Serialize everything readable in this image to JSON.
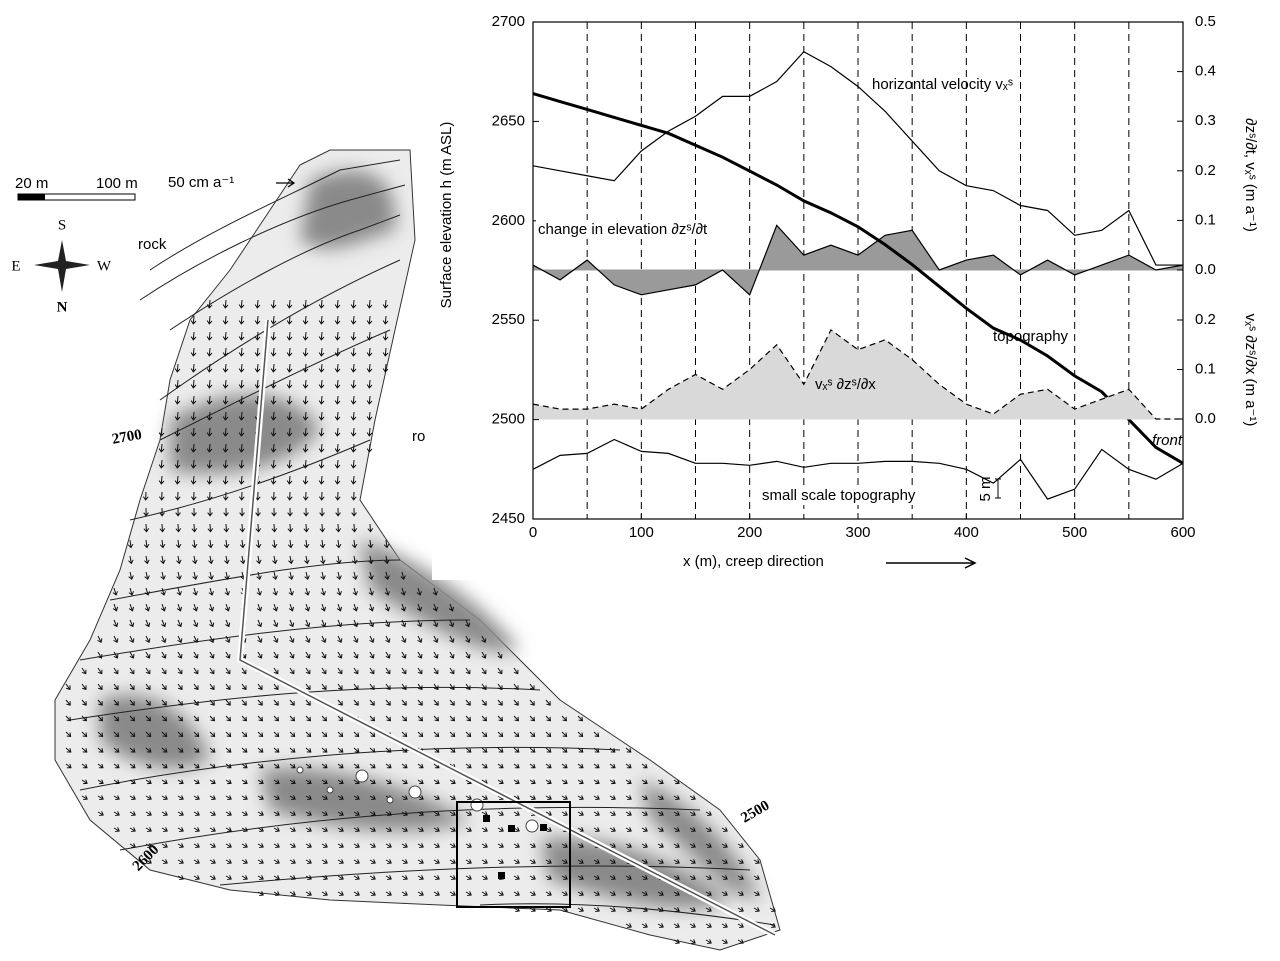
{
  "chart_data": {
    "type": "line",
    "x": [
      0,
      25,
      50,
      75,
      100,
      125,
      150,
      175,
      200,
      225,
      250,
      275,
      300,
      325,
      350,
      375,
      400,
      425,
      450,
      475,
      500,
      525,
      550,
      575,
      600
    ],
    "xlabel": "x (m), creep direction",
    "ylabel": "Surface elevation h  (m ASL)",
    "y2label": "∂zˢ/∂t, vₓˢ   (m a⁻¹)",
    "y3label": "vₓˢ ∂zˢ/∂x  (m a⁻¹)",
    "xlim": [
      0,
      600
    ],
    "xticks": [
      0,
      100,
      200,
      300,
      400,
      500,
      600
    ],
    "xgrid": [
      50,
      100,
      150,
      200,
      250,
      300,
      350,
      400,
      450,
      500,
      550
    ],
    "ylim": [
      2450,
      2700
    ],
    "yticks": [
      2450,
      2500,
      2550,
      2600,
      2650,
      2700
    ],
    "y2lim": [
      0,
      0.5
    ],
    "y2ticks": [
      {
        "value": 0,
        "label": "0.0"
      },
      {
        "value": 0.1,
        "label": "0.1"
      },
      {
        "value": 0.2,
        "label": "0.2"
      },
      {
        "value": 0.3,
        "label": "0.3"
      },
      {
        "value": 0.4,
        "label": "0.4"
      },
      {
        "value": 0.5,
        "label": "0.5"
      }
    ],
    "y3lim": [
      0,
      0.2
    ],
    "y3ticks": [
      {
        "value": 0,
        "label": "0.0"
      },
      {
        "value": 0.1,
        "label": "0.1"
      },
      {
        "value": 0.2,
        "label": "0.2"
      }
    ],
    "series": [
      {
        "name": "horizontal velocity vₓˢ",
        "color": "#000000",
        "axis": "y2",
        "style": "thin",
        "values": [
          0.21,
          0.2,
          0.19,
          0.18,
          0.24,
          0.28,
          0.31,
          0.35,
          0.35,
          0.38,
          0.44,
          0.41,
          0.37,
          0.32,
          0.26,
          0.2,
          0.17,
          0.16,
          0.13,
          0.12,
          0.07,
          0.08,
          0.12,
          0.01,
          0.01
        ]
      },
      {
        "name": "change in elevation ∂zˢ/∂t",
        "color": "#000000",
        "fill": "#9a9a9a",
        "axis": "y2",
        "style": "thin",
        "values": [
          0.01,
          -0.02,
          0.02,
          -0.03,
          -0.05,
          -0.04,
          -0.03,
          0.0,
          -0.05,
          0.09,
          0.03,
          0.05,
          0.03,
          0.07,
          0.08,
          0.0,
          0.02,
          0.03,
          -0.01,
          0.02,
          -0.01,
          0.01,
          0.03,
          0.0,
          0.01
        ]
      },
      {
        "name": "topography",
        "color": "#000000",
        "axis": "y",
        "style": "thick",
        "values": [
          2664,
          2660,
          2656,
          2652,
          2648,
          2644,
          2638,
          2632,
          2625,
          2618,
          2610,
          2604,
          2597,
          2588,
          2578,
          2567,
          2556,
          2546,
          2540,
          2532,
          2522,
          2514,
          2500,
          2486,
          2478
        ]
      },
      {
        "name": "vₓˢ ∂zˢ/∂x",
        "color": "#000000",
        "fill": "#d9d9d9",
        "axis": "y3",
        "style": "dashed",
        "values": [
          0.03,
          0.02,
          0.02,
          0.03,
          0.02,
          0.06,
          0.09,
          0.06,
          0.1,
          0.15,
          0.07,
          0.18,
          0.14,
          0.16,
          0.12,
          0.07,
          0.03,
          0.01,
          0.05,
          0.06,
          0.02,
          0.04,
          0.06,
          0.0,
          0.0
        ]
      },
      {
        "name": "small scale topography",
        "color": "#000000",
        "axis": "y",
        "style": "thin",
        "values": [
          2475,
          2482,
          2483,
          2490,
          2484,
          2483,
          2478,
          2478,
          2477,
          2479,
          2476,
          2478,
          2478,
          2479,
          2479,
          2478,
          2475,
          2468,
          2480,
          2460,
          2465,
          2485,
          2475,
          2470,
          2478
        ]
      }
    ],
    "annotations": {
      "front": "front",
      "scale_bar": "5 m"
    }
  },
  "map": {
    "scale": {
      "left": "20 m",
      "right": "100 m"
    },
    "vector_label": "50 cm a⁻¹",
    "compass": {
      "south": "S",
      "east": "E",
      "west": "W",
      "north": "N"
    },
    "labels": [
      "rock",
      "ro"
    ],
    "contours": [
      "2700",
      "2600",
      "2500"
    ]
  }
}
